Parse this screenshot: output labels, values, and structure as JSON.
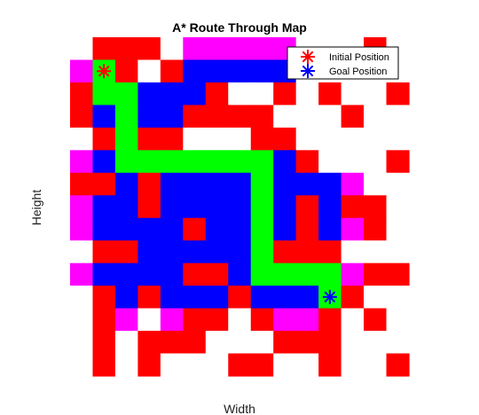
{
  "chart_data": {
    "type": "heatmap",
    "title": "A* Route Through Map",
    "xlabel": "Width",
    "ylabel": "Height",
    "grid": false,
    "axes_ticks_visible": false,
    "legend_placement": "top-right",
    "legend": [
      {
        "label": "Initial Position",
        "marker": "asterisk",
        "color": "#ff0000"
      },
      {
        "label": "Goal Position",
        "marker": "asterisk",
        "color": "#0000ff"
      }
    ],
    "colors": {
      "W": "#ffffff",
      "R": "#ff0000",
      "B": "#0000ff",
      "G": "#00ff00",
      "M": "#ff00ff"
    },
    "rows": 15,
    "cols": 15,
    "grid_rows": [
      "WRRRWMMMMMWWWRW",
      "MGRWRBBBBBWWWWW",
      "RGGBBBRWWRWRWWR",
      "RBGBBRRRRWWWRWW",
      "WRGRRWWWRRWWWWW",
      "MBGGGGGGGBRWWWR",
      "RRBRBBBBGBBBMWW",
      "MBBRBBBBGBRBRRW",
      "MBBBBRBBGBRBMRW",
      "WRRBBBBBGRRRWWW",
      "MBBBBRRBGGGGMRR",
      "WRBRBBBRBBBGRWW",
      "WRMWMRRWRMMRWRW",
      "WRWRRRWWWRRRWWW",
      "WRWRWWWRRWWRWWR"
    ],
    "start": {
      "row": 1,
      "col": 1
    },
    "goal": {
      "row": 11,
      "col": 11
    }
  }
}
